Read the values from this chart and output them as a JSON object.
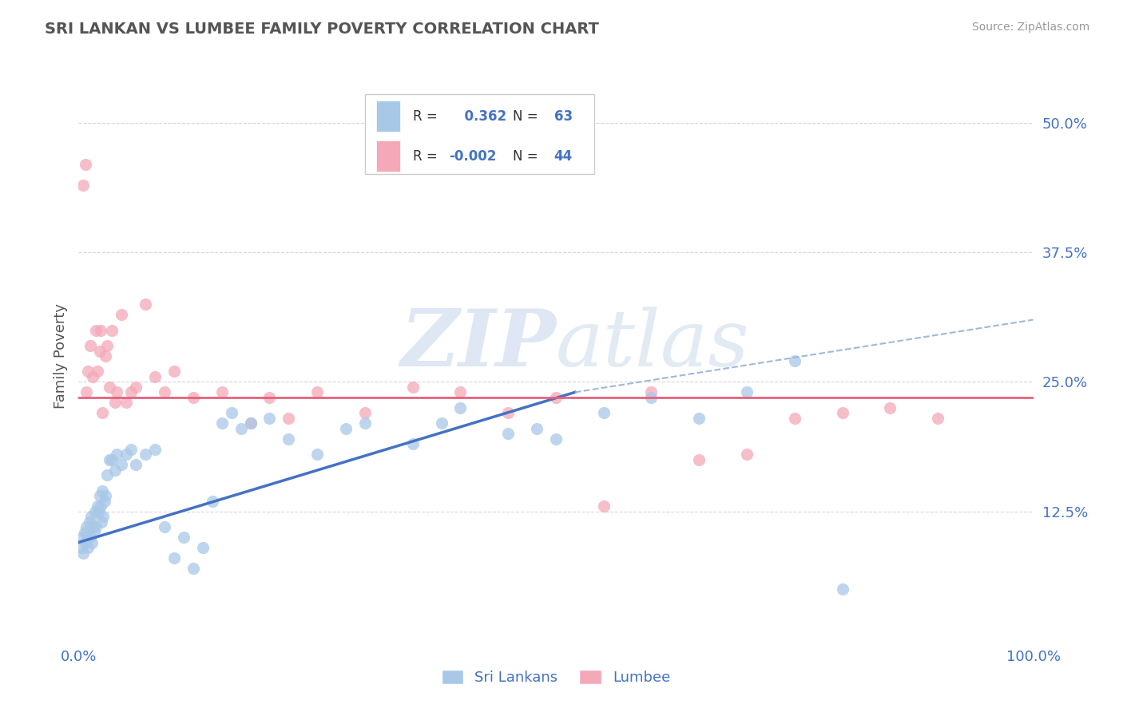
{
  "title": "SRI LANKAN VS LUMBEE FAMILY POVERTY CORRELATION CHART",
  "source_text": "Source: ZipAtlas.com",
  "ylabel": "Family Poverty",
  "xlim": [
    0,
    100
  ],
  "ylim": [
    0,
    55
  ],
  "yticks": [
    0,
    12.5,
    25.0,
    37.5,
    50.0
  ],
  "xticks": [
    0,
    100
  ],
  "xticklabels": [
    "0.0%",
    "100.0%"
  ],
  "yticklabels": [
    "",
    "12.5%",
    "25.0%",
    "37.5%",
    "50.0%"
  ],
  "sri_lankan_color": "#a8c8e8",
  "lumbee_color": "#f4a8b8",
  "legend_text_color": "#4472c4",
  "title_color": "#555555",
  "axis_label_color": "#4472c4",
  "ytick_label_color": "#4472c4",
  "background_color": "#ffffff",
  "grid_color": "#cccccc",
  "sri_lankans_label": "Sri Lankans",
  "lumbee_label": "Lumbee",
  "sri_lankan_trend_color": "#4472c4",
  "lumbee_trend_color": "#e8607a",
  "dashed_trend_color": "#a0b8d8",
  "watermark_color": "#d8e8f4",
  "sri_lankan_R": 0.362,
  "sri_lankan_N": 63,
  "lumbee_R": -0.002,
  "lumbee_N": 44,
  "sri_lankan_trend_start_y": 9.5,
  "sri_lankan_trend_end_x": 52,
  "sri_lankan_trend_end_y": 24.0,
  "lumbee_trend_y": 23.5,
  "dashed_trend_start_x": 52,
  "dashed_trend_start_y": 24.0,
  "dashed_trend_end_x": 100,
  "dashed_trend_end_y": 31.0,
  "sri_lankan_points_x": [
    0.3,
    0.4,
    0.5,
    0.6,
    0.7,
    0.8,
    0.9,
    1.0,
    1.1,
    1.2,
    1.3,
    1.4,
    1.5,
    1.6,
    1.7,
    1.8,
    2.0,
    2.1,
    2.2,
    2.3,
    2.4,
    2.5,
    2.6,
    2.7,
    2.8,
    3.0,
    3.2,
    3.5,
    3.8,
    4.0,
    4.5,
    5.0,
    5.5,
    6.0,
    7.0,
    8.0,
    9.0,
    10.0,
    11.0,
    12.0,
    13.0,
    14.0,
    15.0,
    16.0,
    17.0,
    18.0,
    20.0,
    22.0,
    25.0,
    28.0,
    30.0,
    35.0,
    38.0,
    40.0,
    45.0,
    48.0,
    50.0,
    55.0,
    60.0,
    65.0,
    70.0,
    75.0,
    80.0
  ],
  "sri_lankan_points_y": [
    9.0,
    10.0,
    8.5,
    10.5,
    9.5,
    11.0,
    10.0,
    9.0,
    11.5,
    10.0,
    12.0,
    9.5,
    11.0,
    10.5,
    12.5,
    11.0,
    13.0,
    12.5,
    14.0,
    13.0,
    11.5,
    14.5,
    12.0,
    13.5,
    14.0,
    16.0,
    17.5,
    17.5,
    16.5,
    18.0,
    17.0,
    18.0,
    18.5,
    17.0,
    18.0,
    18.5,
    11.0,
    8.0,
    10.0,
    7.0,
    9.0,
    13.5,
    21.0,
    22.0,
    20.5,
    21.0,
    21.5,
    19.5,
    18.0,
    20.5,
    21.0,
    19.0,
    21.0,
    22.5,
    20.0,
    20.5,
    19.5,
    22.0,
    23.5,
    21.5,
    24.0,
    27.0,
    5.0
  ],
  "lumbee_points_x": [
    0.5,
    0.7,
    0.8,
    1.0,
    1.2,
    1.5,
    1.8,
    2.0,
    2.2,
    2.5,
    2.8,
    3.0,
    3.2,
    3.5,
    4.0,
    4.5,
    5.0,
    6.0,
    7.0,
    8.0,
    10.0,
    12.0,
    15.0,
    18.0,
    20.0,
    22.0,
    25.0,
    30.0,
    35.0,
    40.0,
    45.0,
    50.0,
    55.0,
    60.0,
    65.0,
    70.0,
    75.0,
    80.0,
    85.0,
    90.0,
    2.3,
    3.8,
    5.5,
    9.0
  ],
  "lumbee_points_y": [
    44.0,
    46.0,
    24.0,
    26.0,
    28.5,
    25.5,
    30.0,
    26.0,
    28.0,
    22.0,
    27.5,
    28.5,
    24.5,
    30.0,
    24.0,
    31.5,
    23.0,
    24.5,
    32.5,
    25.5,
    26.0,
    23.5,
    24.0,
    21.0,
    23.5,
    21.5,
    24.0,
    22.0,
    24.5,
    24.0,
    22.0,
    23.5,
    13.0,
    24.0,
    17.5,
    18.0,
    21.5,
    22.0,
    22.5,
    21.5,
    30.0,
    23.0,
    24.0,
    24.0
  ]
}
